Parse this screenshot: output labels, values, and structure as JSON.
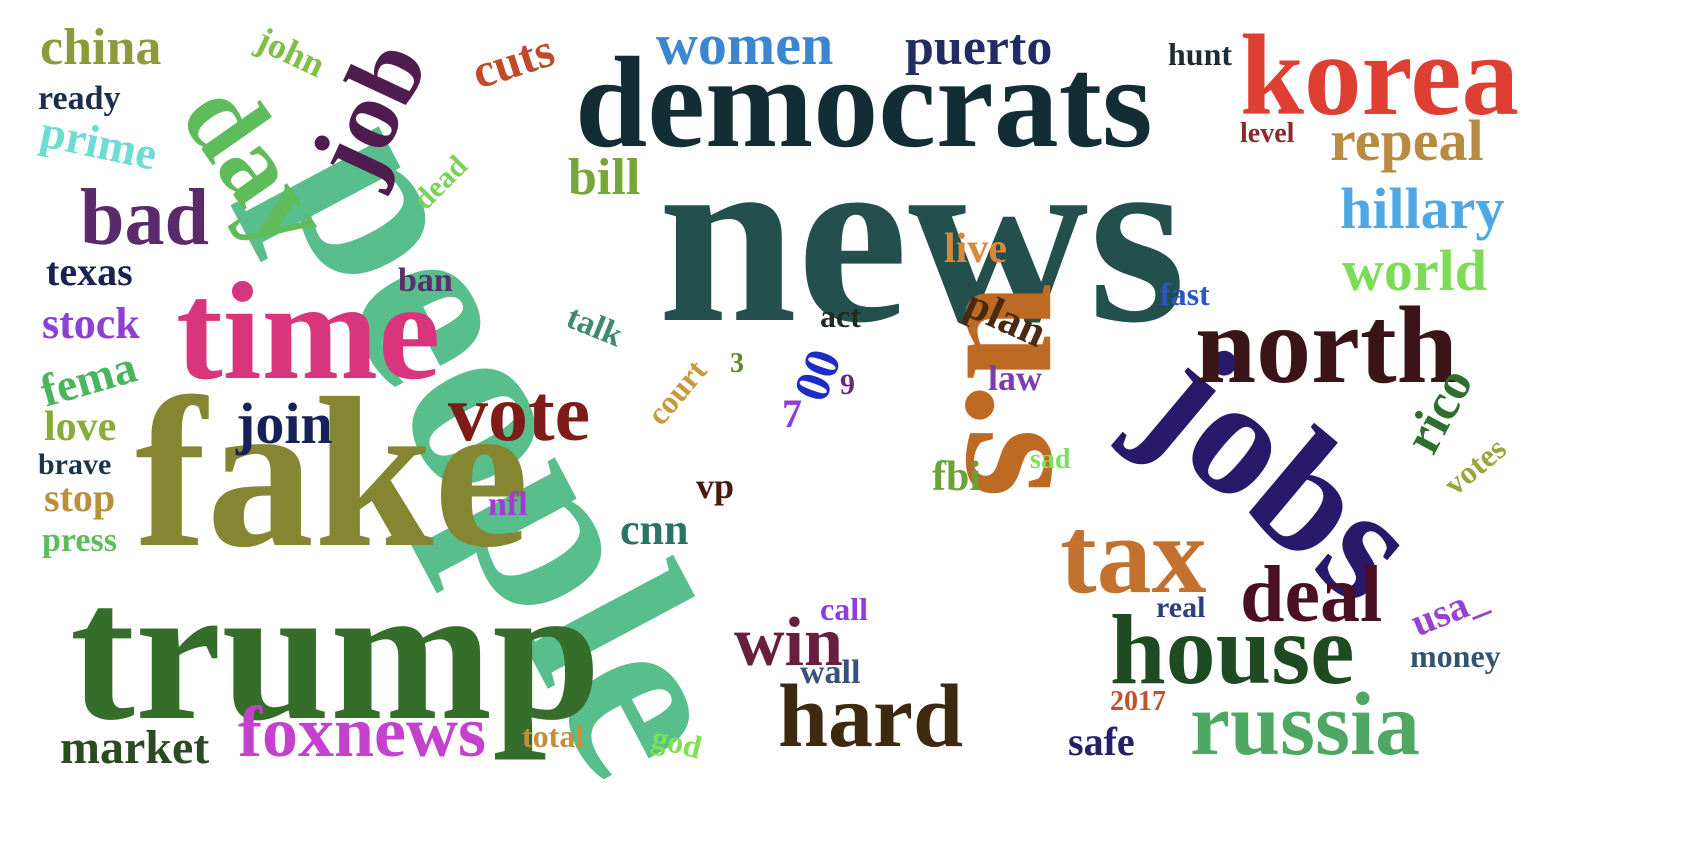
{
  "words": [
    {
      "id": "news",
      "text": "news",
      "color": "#234f4d"
    },
    {
      "id": "people",
      "text": "people",
      "color": "#58be8c"
    },
    {
      "id": "fake",
      "text": "fake",
      "color": "#848631"
    },
    {
      "id": "trump",
      "text": "trump",
      "color": "#356d2b"
    },
    {
      "id": "time",
      "text": "time",
      "color": "#d9357c"
    },
    {
      "id": "democrats",
      "text": "democrats",
      "color": "#132d34"
    },
    {
      "id": "us",
      "text": "u.s",
      "color": "#bd6a25"
    },
    {
      "id": "jobs",
      "text": "jobs",
      "color": "#28196a"
    },
    {
      "id": "korea",
      "text": "korea",
      "color": "#df3f32"
    },
    {
      "id": "north",
      "text": "north",
      "color": "#3b1418"
    },
    {
      "id": "house",
      "text": "house",
      "color": "#1f4b22"
    },
    {
      "id": "russia",
      "text": "russia",
      "color": "#4ea762"
    },
    {
      "id": "tax",
      "text": "tax",
      "color": "#c2712e"
    },
    {
      "id": "hard",
      "text": "hard",
      "color": "#3e2a10"
    },
    {
      "id": "day",
      "text": "day",
      "color": "#5ebc5a"
    },
    {
      "id": "job",
      "text": "job",
      "color": "#4f1c4f"
    },
    {
      "id": "deal",
      "text": "deal",
      "color": "#4b0f24"
    },
    {
      "id": "vote",
      "text": "vote",
      "color": "#7d1c18"
    },
    {
      "id": "foxnews",
      "text": "foxnews",
      "color": "#c441ce"
    },
    {
      "id": "win",
      "text": "win",
      "color": "#671f3d"
    },
    {
      "id": "bad",
      "text": "bad",
      "color": "#5a2a6b"
    },
    {
      "id": "women",
      "text": "women",
      "color": "#3a86d0"
    },
    {
      "id": "puerto",
      "text": "puerto",
      "color": "#212d62"
    },
    {
      "id": "join",
      "text": "join",
      "color": "#162159"
    },
    {
      "id": "repeal",
      "text": "repeal",
      "color": "#b98a42"
    },
    {
      "id": "hillary",
      "text": "hillary",
      "color": "#4fa8e4"
    },
    {
      "id": "world",
      "text": "world",
      "color": "#7ddc55"
    },
    {
      "id": "china",
      "text": "china",
      "color": "#8d9a3c"
    },
    {
      "id": "market",
      "text": "market",
      "color": "#2b4a22"
    },
    {
      "id": "rico",
      "text": "rico",
      "color": "#2e6f2f"
    },
    {
      "id": "cuts",
      "text": "cuts",
      "color": "#c04a2b"
    },
    {
      "id": "prime",
      "text": "prime",
      "color": "#6ddcd1"
    },
    {
      "id": "bill",
      "text": "bill",
      "color": "#77a537"
    },
    {
      "id": "texas",
      "text": "texas",
      "color": "#192150"
    },
    {
      "id": "stock",
      "text": "stock",
      "color": "#8d3fd6"
    },
    {
      "id": "fema",
      "text": "fema",
      "color": "#49b55e"
    },
    {
      "id": "love",
      "text": "love",
      "color": "#8aaa3b"
    },
    {
      "id": "stop",
      "text": "stop",
      "color": "#b88f3d"
    },
    {
      "id": "press",
      "text": "press",
      "color": "#5cbc5c"
    },
    {
      "id": "brave",
      "text": "brave",
      "color": "#1e3344"
    },
    {
      "id": "ready",
      "text": "ready",
      "color": "#1b2f4a"
    },
    {
      "id": "john",
      "text": "john",
      "color": "#7fbf45"
    },
    {
      "id": "plan",
      "text": "plan",
      "color": "#4a2a12"
    },
    {
      "id": "live",
      "text": "live",
      "color": "#d9883b"
    },
    {
      "id": "cnn",
      "text": "cnn",
      "color": "#2a7466"
    },
    {
      "id": "fbi",
      "text": "fbi",
      "color": "#6aa236"
    },
    {
      "id": "usa",
      "text": "usa_",
      "color": "#9b40d0"
    },
    {
      "id": "safe",
      "text": "safe",
      "color": "#24216a"
    },
    {
      "id": "total",
      "text": "total",
      "color": "#c48f3e"
    },
    {
      "id": "god",
      "text": "god",
      "color": "#7fe050"
    },
    {
      "id": "votes",
      "text": "votes",
      "color": "#9aa43b"
    },
    {
      "id": "money",
      "text": "money",
      "color": "#2f5570"
    },
    {
      "id": "real",
      "text": "real",
      "color": "#2b3e7f"
    },
    {
      "id": "wall",
      "text": "wall",
      "color": "#3a4f7a"
    },
    {
      "id": "call",
      "text": "call",
      "color": "#8a3fd8"
    },
    {
      "id": "year2017",
      "text": "2017",
      "color": "#c2522c"
    },
    {
      "id": "vp",
      "text": "vp",
      "color": "#4a1a10"
    },
    {
      "id": "nfl",
      "text": "nfl",
      "color": "#a43ad1"
    },
    {
      "id": "ban",
      "text": "ban",
      "color": "#5a2d6e"
    },
    {
      "id": "talk",
      "text": "talk",
      "color": "#3f8a6d"
    },
    {
      "id": "act",
      "text": "act",
      "color": "#1e2b1e"
    },
    {
      "id": "zeros",
      "text": "00",
      "color": "#1f2cc4"
    },
    {
      "id": "num3",
      "text": "3",
      "color": "#5f8a2a"
    },
    {
      "id": "num7",
      "text": "7",
      "color": "#8f3cd9"
    },
    {
      "id": "num9",
      "text": "9",
      "color": "#6a2a7a"
    },
    {
      "id": "court",
      "text": "court",
      "color": "#c79a3f"
    },
    {
      "id": "law",
      "text": "law",
      "color": "#7a3fae"
    },
    {
      "id": "sad",
      "text": "sad",
      "color": "#7be05a"
    },
    {
      "id": "fast",
      "text": "fast",
      "color": "#2c56c4"
    },
    {
      "id": "dead",
      "text": "dead",
      "color": "#7bd058"
    },
    {
      "id": "level",
      "text": "level",
      "color": "#8a2a2a"
    },
    {
      "id": "hunt",
      "text": "hunt",
      "color": "#1e2a36"
    }
  ]
}
